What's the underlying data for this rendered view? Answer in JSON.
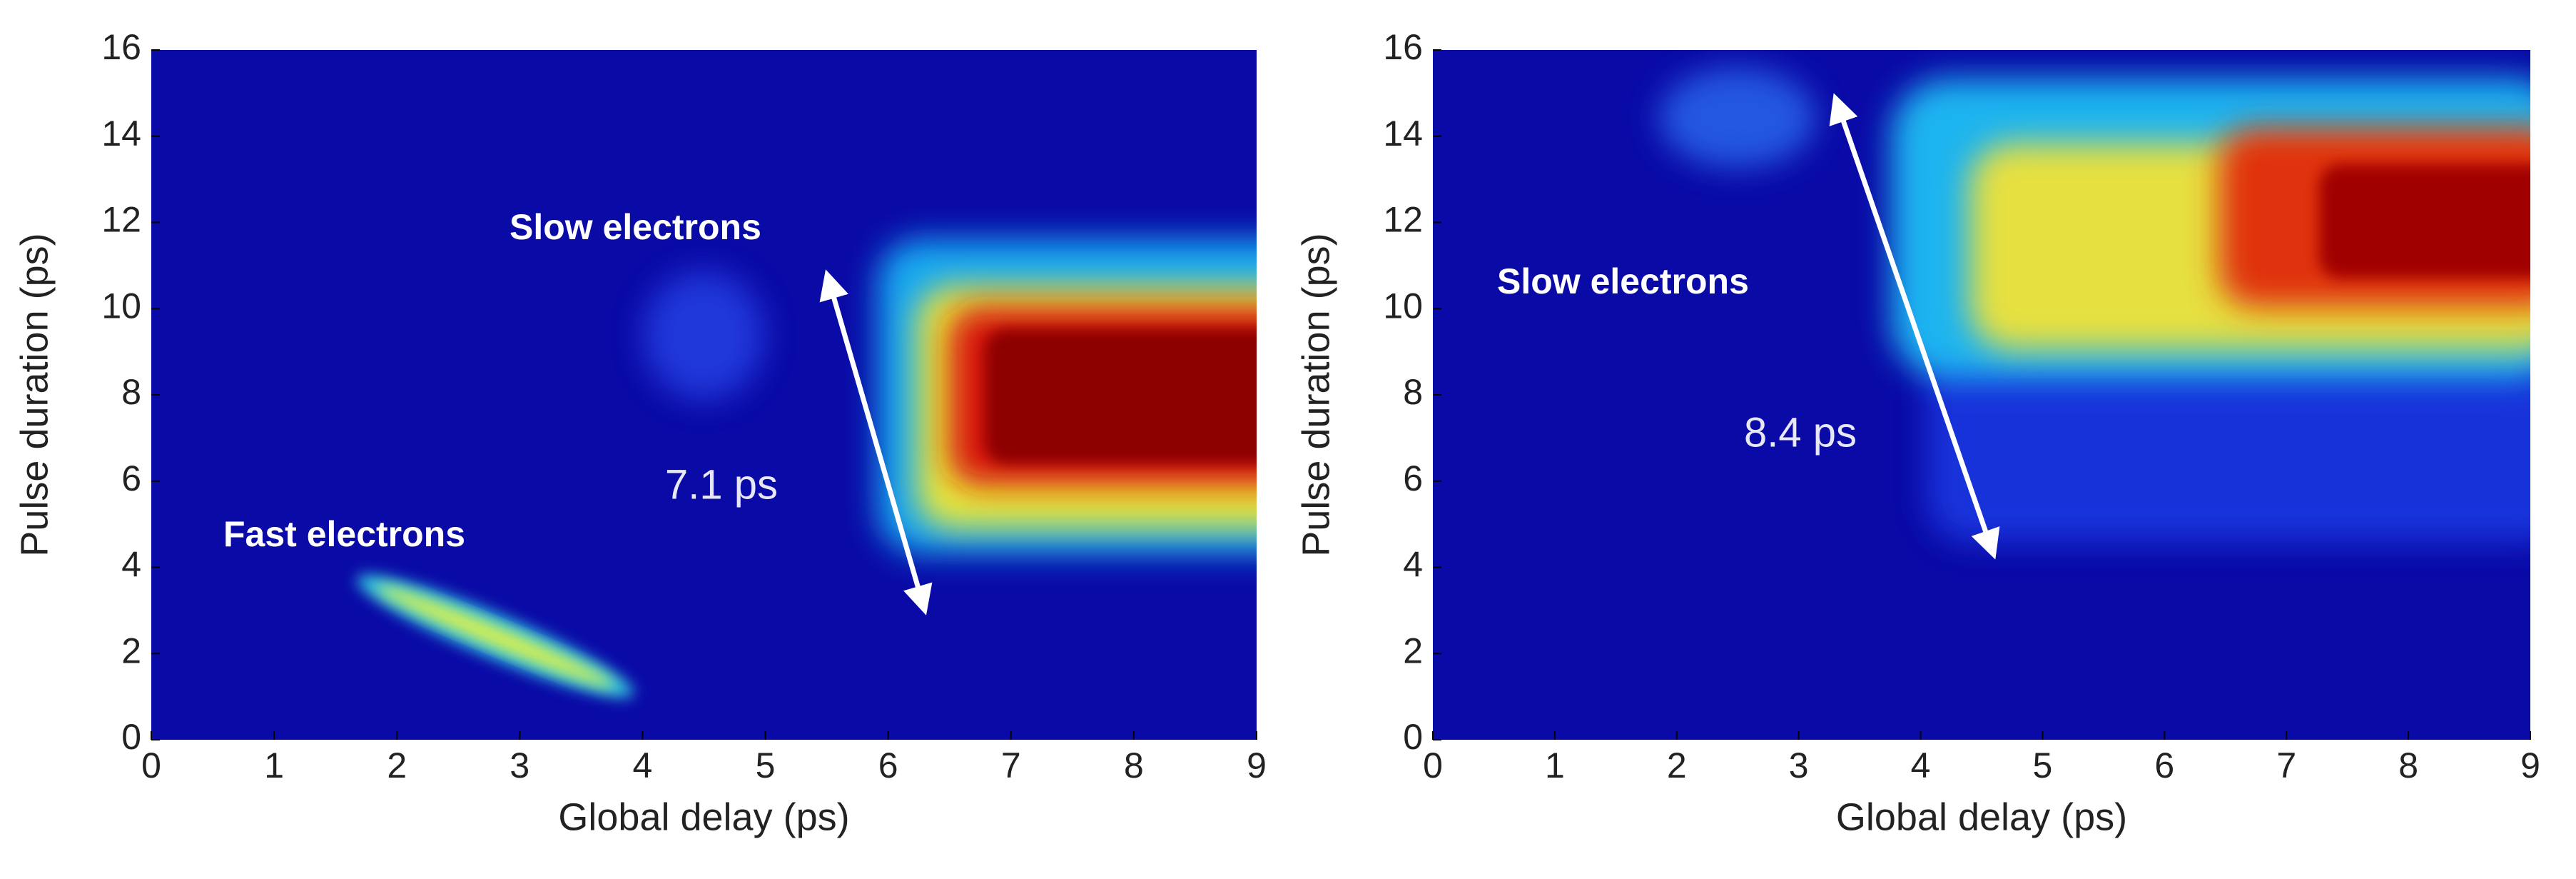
{
  "chart_data": [
    {
      "type": "heatmap",
      "xlabel": "Global delay (ps)",
      "ylabel": "Pulse duration (ps)",
      "xlim": [
        0,
        9
      ],
      "ylim": [
        0,
        16
      ],
      "xticks": [
        0,
        1,
        2,
        3,
        4,
        5,
        6,
        7,
        8,
        9
      ],
      "yticks": [
        0,
        2,
        4,
        6,
        8,
        10,
        12,
        14,
        16
      ],
      "annotations": [
        "Slow electrons",
        "Fast electrons",
        "7.1 ps"
      ]
    },
    {
      "type": "heatmap",
      "xlabel": "Global delay (ps)",
      "ylabel": "Pulse duration (ps)",
      "xlim": [
        0,
        9
      ],
      "ylim": [
        0,
        16
      ],
      "xticks": [
        0,
        1,
        2,
        3,
        4,
        5,
        6,
        7,
        8,
        9
      ],
      "yticks": [
        0,
        2,
        4,
        6,
        8,
        10,
        12,
        14,
        16
      ],
      "annotations": [
        "Slow electrons",
        "8.4 ps"
      ]
    }
  ]
}
